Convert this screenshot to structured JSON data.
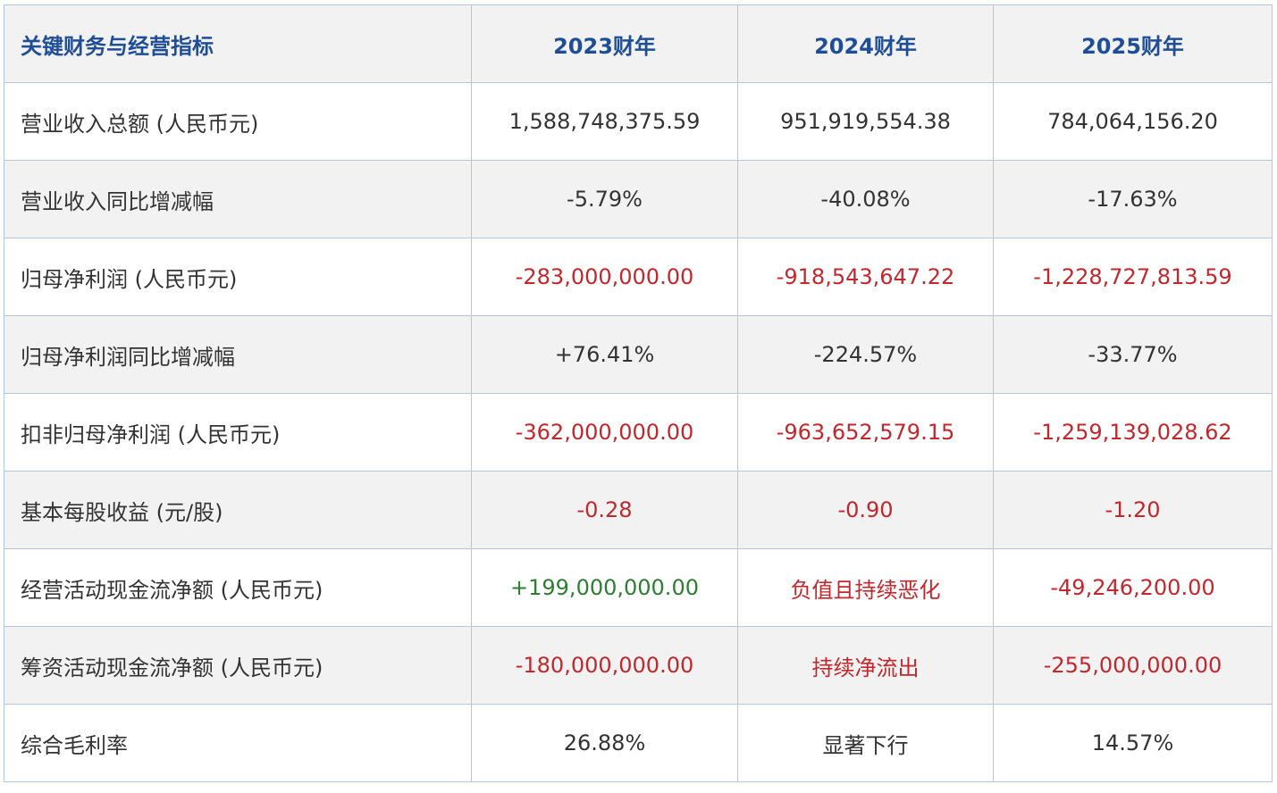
{
  "header": {
    "label": "关键财务与经营指标",
    "years": [
      "2023财年",
      "2024财年",
      "2025财年"
    ]
  },
  "colors": {
    "header_text": "#1f4e97",
    "header_bg": "#f2f2f2",
    "negative": "#c0282d",
    "positive": "#2e7d32",
    "border": "#b3c8dd"
  },
  "rows": [
    {
      "label": "营业收入总额 (人民币元)",
      "values": [
        "1,588,748,375.59",
        "951,919,554.38",
        "784,064,156.20"
      ],
      "tones": [
        "default",
        "default",
        "default"
      ]
    },
    {
      "label": "营业收入同比增减幅",
      "values": [
        "-5.79%",
        "-40.08%",
        "-17.63%"
      ],
      "tones": [
        "default",
        "default",
        "default"
      ]
    },
    {
      "label": "归母净利润 (人民币元)",
      "values": [
        "-283,000,000.00",
        "-918,543,647.22",
        "-1,228,727,813.59"
      ],
      "tones": [
        "red",
        "red",
        "red"
      ]
    },
    {
      "label": "归母净利润同比增减幅",
      "values": [
        "+76.41%",
        "-224.57%",
        "-33.77%"
      ],
      "tones": [
        "default",
        "default",
        "default"
      ]
    },
    {
      "label": "扣非归母净利润 (人民币元)",
      "values": [
        "-362,000,000.00",
        "-963,652,579.15",
        "-1,259,139,028.62"
      ],
      "tones": [
        "red",
        "red",
        "red"
      ]
    },
    {
      "label": "基本每股收益 (元/股)",
      "values": [
        "-0.28",
        "-0.90",
        "-1.20"
      ],
      "tones": [
        "red",
        "red",
        "red"
      ]
    },
    {
      "label": "经营活动现金流净额 (人民币元)",
      "values": [
        "+199,000,000.00",
        "负值且持续恶化",
        "-49,246,200.00"
      ],
      "tones": [
        "green",
        "red",
        "red"
      ]
    },
    {
      "label": "筹资活动现金流净额 (人民币元)",
      "values": [
        "-180,000,000.00",
        "持续净流出",
        "-255,000,000.00"
      ],
      "tones": [
        "red",
        "red",
        "red"
      ]
    },
    {
      "label": "综合毛利率",
      "values": [
        "26.88%",
        "显著下行",
        "14.57%"
      ],
      "tones": [
        "default",
        "default",
        "default"
      ]
    }
  ]
}
